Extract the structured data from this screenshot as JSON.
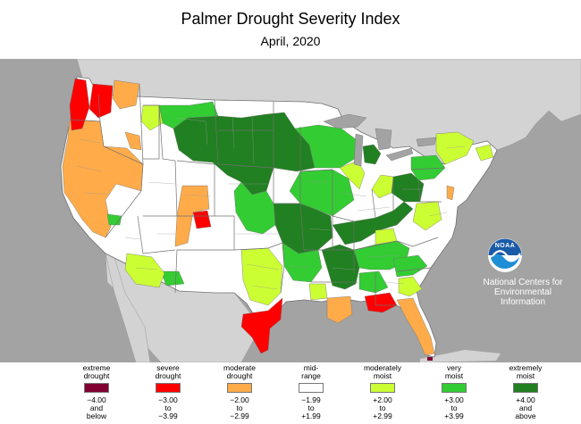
{
  "title": "Palmer Drought Severity Index",
  "subtitle": "April, 2020",
  "colors": {
    "ocean": "#a3a3a3",
    "land_other": "#d3d3d3",
    "borders": "#707070",
    "extreme_drought": "#800033",
    "severe_drought": "#ff0000",
    "moderate_drought": "#ffab4a",
    "mid_range": "#ffffff",
    "moderately_moist": "#ccff33",
    "very_moist": "#33cc33",
    "extremely_moist": "#218021"
  },
  "legend": [
    {
      "top": [
        "extreme",
        "drought"
      ],
      "bottom": [
        "−4.00",
        "and",
        "below"
      ],
      "color": "#800033"
    },
    {
      "top": [
        "severe",
        "drought"
      ],
      "bottom": [
        "−3.00",
        "to",
        "−3.99"
      ],
      "color": "#ff0000"
    },
    {
      "top": [
        "moderate",
        "drought"
      ],
      "bottom": [
        "−2.00",
        "to",
        "−2.99"
      ],
      "color": "#ffab4a"
    },
    {
      "top": [
        "mid-",
        "range"
      ],
      "bottom": [
        "−1.99",
        "to",
        "+1.99"
      ],
      "color": "#ffffff"
    },
    {
      "top": [
        "moderately",
        "moist"
      ],
      "bottom": [
        "+2.00",
        "to",
        "+2.99"
      ],
      "color": "#ccff33"
    },
    {
      "top": [
        "very",
        "moist"
      ],
      "bottom": [
        "+3.00",
        "to",
        "+3.99"
      ],
      "color": "#33cc33"
    },
    {
      "top": [
        "extremely",
        "moist"
      ],
      "bottom": [
        "+4.00",
        "and",
        "above"
      ],
      "color": "#218021"
    }
  ],
  "logo": {
    "emblem": "noaa-seal-icon",
    "emblem_text": "NOAA",
    "lines": [
      "National Centers for",
      "Environmental",
      "Information"
    ]
  }
}
